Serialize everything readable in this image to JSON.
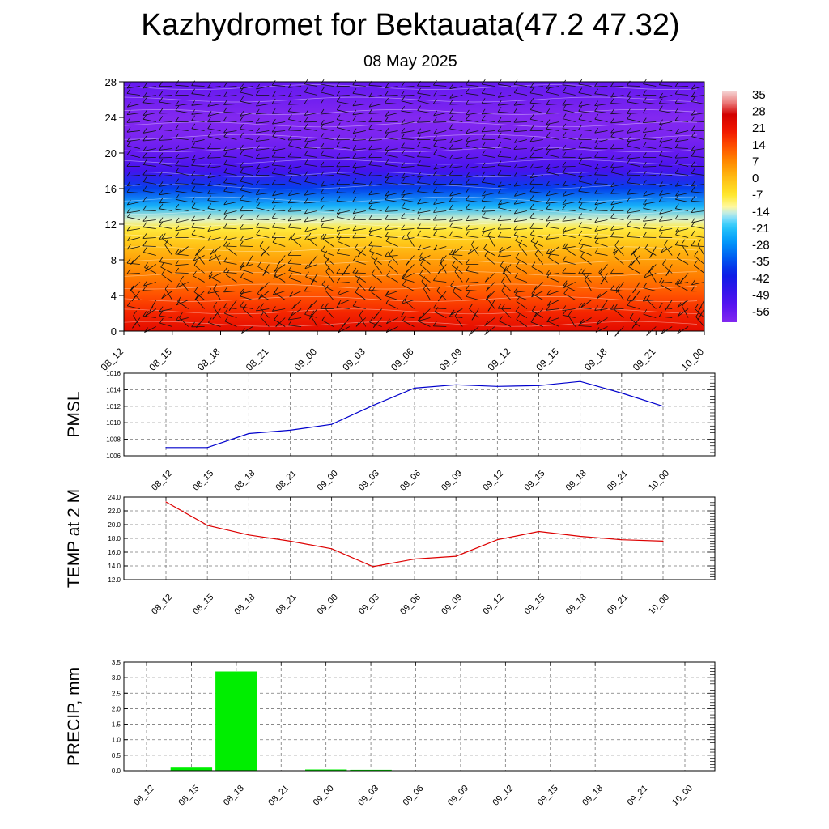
{
  "header": {
    "title": "Kazhydromet for Bektauata(47.2 47.32)",
    "date": "08 May 2025"
  },
  "chart_data": [
    {
      "type": "heatmap",
      "name": "vertical-cross-section",
      "x_tick_labels": [
        "08_12",
        "08_15",
        "08_18",
        "08_21",
        "09_00",
        "09_03",
        "09_06",
        "09_09",
        "09_12",
        "09_15",
        "09_18",
        "09_21",
        "10_00"
      ],
      "y_ticks": [
        0,
        4,
        8,
        12,
        16,
        20,
        24,
        28
      ],
      "ylim": [
        0,
        28
      ],
      "temperature_profile": [
        {
          "level": 0,
          "value": 24
        },
        {
          "level": 2,
          "value": 19
        },
        {
          "level": 4,
          "value": 14
        },
        {
          "level": 6,
          "value": 9
        },
        {
          "level": 8,
          "value": 4
        },
        {
          "level": 10,
          "value": -2
        },
        {
          "level": 11.5,
          "value": -8
        },
        {
          "level": 12.5,
          "value": -14
        },
        {
          "level": 14,
          "value": -24
        },
        {
          "level": 16,
          "value": -38
        },
        {
          "level": 18,
          "value": -52
        },
        {
          "level": 20,
          "value": -58
        },
        {
          "level": 22,
          "value": -62
        },
        {
          "level": 24,
          "value": -63
        },
        {
          "level": 26,
          "value": -60
        },
        {
          "level": 28,
          "value": -58
        }
      ],
      "colorbar": {
        "labels": [
          "35",
          "28",
          "21",
          "14",
          "7",
          "0",
          "-7",
          "-14",
          "-21",
          "-28",
          "-35",
          "-42",
          "-49",
          "-56"
        ],
        "range": [
          -63,
          38
        ]
      },
      "wind_barbs": true
    },
    {
      "type": "line",
      "name": "pmsl",
      "ylabel": "PMSL",
      "categories": [
        "08_12",
        "08_15",
        "08_18",
        "08_21",
        "09_00",
        "09_03",
        "09_06",
        "09_09",
        "09_12",
        "09_15",
        "09_18",
        "09_21",
        "10_00"
      ],
      "values": [
        1007.0,
        1007.0,
        1008.7,
        1009.1,
        1009.8,
        1012.1,
        1014.2,
        1014.6,
        1014.4,
        1014.5,
        1015.0,
        1013.6,
        1012.0
      ],
      "ylim": [
        1006,
        1016
      ],
      "y_ticks": [
        "1006",
        "1008",
        "1010",
        "1012",
        "1014",
        "1016"
      ],
      "color": "#0000cc",
      "grid": true
    },
    {
      "type": "line",
      "name": "temp-2m",
      "ylabel": "TEMP at 2 M",
      "categories": [
        "08_12",
        "08_15",
        "08_18",
        "08_21",
        "09_00",
        "09_03",
        "09_06",
        "09_09",
        "09_12",
        "09_15",
        "09_18",
        "09_21",
        "10_00"
      ],
      "values": [
        23.3,
        19.9,
        18.5,
        17.6,
        16.5,
        13.9,
        15.0,
        15.4,
        17.8,
        19.0,
        18.3,
        17.8,
        17.6
      ],
      "ylim": [
        12,
        24
      ],
      "y_ticks": [
        "12.0",
        "14.0",
        "16.0",
        "18.0",
        "20.0",
        "22.0",
        "24.0"
      ],
      "color": "#dd0000",
      "grid": true
    },
    {
      "type": "bar",
      "name": "precip",
      "ylabel": "PRECIP, mm",
      "categories": [
        "08_12",
        "08_15",
        "08_18",
        "08_21",
        "09_00",
        "09_03",
        "09_06",
        "09_09",
        "09_12",
        "09_15",
        "09_18",
        "09_21",
        "10_00"
      ],
      "values": [
        0.0,
        0.1,
        3.2,
        0.0,
        0.04,
        0.03,
        0.0,
        0.0,
        0.0,
        0.0,
        0.0,
        0.0,
        0.0
      ],
      "ylim": [
        0,
        3.5
      ],
      "y_ticks": [
        "0.0",
        "0.5",
        "1.0",
        "1.5",
        "2.0",
        "2.5",
        "3.0",
        "3.5"
      ],
      "color": "#00ee00",
      "grid": true
    }
  ]
}
